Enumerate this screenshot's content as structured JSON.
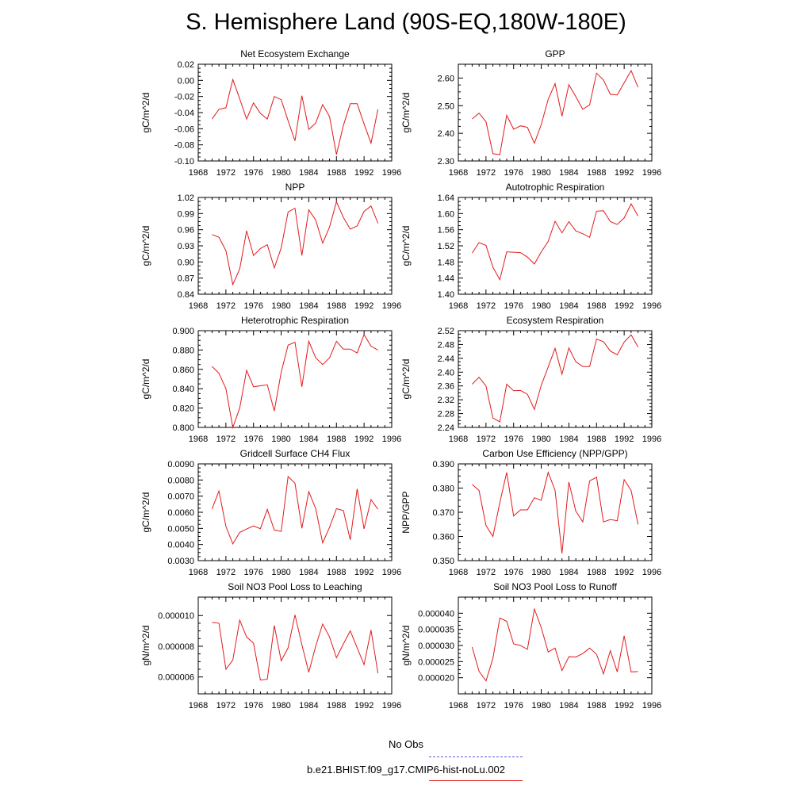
{
  "figure": {
    "title": "S. Hemisphere Land (90S-EQ,180W-180E)",
    "series_color": "#e31a1c",
    "obs_color": "#5b5bd6"
  },
  "legend": {
    "entries": [
      {
        "label": "No Obs",
        "style": "dashed",
        "color": "#5b5bd6"
      },
      {
        "label": "b.e21.BHIST.f09_g17.CMIP6-hist-noLu.002",
        "style": "solid",
        "color": "#e31a1c"
      }
    ]
  },
  "chart_data": [
    {
      "type": "line",
      "title": "Net Ecosystem Exchange",
      "ylabel": "gC/m^2/d",
      "xlim": [
        1968,
        1996
      ],
      "xticks": [
        1968,
        1972,
        1976,
        1980,
        1984,
        1988,
        1992,
        1996
      ],
      "ylim": [
        -0.1,
        0.02
      ],
      "yticks": [
        "-0.10",
        "-0.08",
        "-0.06",
        "-0.04",
        "-0.02",
        "0.00",
        "0.02"
      ],
      "x": [
        1970,
        1971,
        1972,
        1973,
        1974,
        1975,
        1976,
        1977,
        1978,
        1979,
        1980,
        1981,
        1982,
        1983,
        1984,
        1985,
        1986,
        1987,
        1988,
        1989,
        1990,
        1991,
        1992,
        1993,
        1994
      ],
      "values": [
        -0.048,
        -0.036,
        -0.034,
        0.001,
        -0.023,
        -0.048,
        -0.028,
        -0.041,
        -0.048,
        -0.02,
        -0.024,
        -0.05,
        -0.075,
        -0.019,
        -0.061,
        -0.053,
        -0.03,
        -0.045,
        -0.092,
        -0.056,
        -0.029,
        -0.029,
        -0.054,
        -0.078,
        -0.036
      ]
    },
    {
      "type": "line",
      "title": "GPP",
      "ylabel": "gC/m^2/d",
      "xlim": [
        1968,
        1996
      ],
      "xticks": [
        1968,
        1972,
        1976,
        1980,
        1984,
        1988,
        1992,
        1996
      ],
      "ylim": [
        2.3,
        2.65
      ],
      "yticks": [
        "2.30",
        "2.40",
        "2.50",
        "2.60"
      ],
      "x": [
        1970,
        1971,
        1972,
        1973,
        1974,
        1975,
        1976,
        1977,
        1978,
        1979,
        1980,
        1981,
        1982,
        1983,
        1984,
        1985,
        1986,
        1987,
        1988,
        1989,
        1990,
        1991,
        1992,
        1993,
        1994
      ],
      "values": [
        2.452,
        2.473,
        2.442,
        2.326,
        2.323,
        2.465,
        2.415,
        2.427,
        2.422,
        2.364,
        2.432,
        2.523,
        2.58,
        2.462,
        2.576,
        2.533,
        2.487,
        2.503,
        2.618,
        2.593,
        2.541,
        2.539,
        2.583,
        2.627,
        2.567
      ]
    },
    {
      "type": "line",
      "title": "NPP",
      "ylabel": "gC/m^2/d",
      "xlim": [
        1968,
        1996
      ],
      "xticks": [
        1968,
        1972,
        1976,
        1980,
        1984,
        1988,
        1992,
        1996
      ],
      "ylim": [
        0.84,
        1.02
      ],
      "yticks": [
        "0.84",
        "0.87",
        "0.90",
        "0.93",
        "0.96",
        "0.99",
        "1.02"
      ],
      "x": [
        1970,
        1971,
        1972,
        1973,
        1974,
        1975,
        1976,
        1977,
        1978,
        1979,
        1980,
        1981,
        1982,
        1983,
        1984,
        1985,
        1986,
        1987,
        1988,
        1989,
        1990,
        1991,
        1992,
        1993,
        1994
      ],
      "values": [
        0.951,
        0.946,
        0.921,
        0.858,
        0.887,
        0.958,
        0.912,
        0.925,
        0.932,
        0.889,
        0.926,
        0.993,
        1.0,
        0.912,
        0.997,
        0.978,
        0.935,
        0.965,
        1.012,
        0.983,
        0.961,
        0.967,
        0.994,
        1.004,
        0.972
      ]
    },
    {
      "type": "line",
      "title": "Autotrophic Respiration",
      "ylabel": "gC/m^2/d",
      "xlim": [
        1968,
        1996
      ],
      "xticks": [
        1968,
        1972,
        1976,
        1980,
        1984,
        1988,
        1992,
        1996
      ],
      "ylim": [
        1.4,
        1.64
      ],
      "yticks": [
        "1.40",
        "1.44",
        "1.48",
        "1.52",
        "1.56",
        "1.60",
        "1.64"
      ],
      "x": [
        1970,
        1971,
        1972,
        1973,
        1974,
        1975,
        1976,
        1977,
        1978,
        1979,
        1980,
        1981,
        1982,
        1983,
        1984,
        1985,
        1986,
        1987,
        1988,
        1989,
        1990,
        1991,
        1992,
        1993,
        1994
      ],
      "values": [
        1.502,
        1.528,
        1.521,
        1.467,
        1.436,
        1.505,
        1.504,
        1.503,
        1.492,
        1.475,
        1.505,
        1.531,
        1.581,
        1.552,
        1.58,
        1.557,
        1.55,
        1.541,
        1.606,
        1.607,
        1.58,
        1.573,
        1.589,
        1.624,
        1.594
      ]
    },
    {
      "type": "line",
      "title": "Heterotrophic Respiration",
      "ylabel": "gC/m^2/d",
      "xlim": [
        1968,
        1996
      ],
      "xticks": [
        1968,
        1972,
        1976,
        1980,
        1984,
        1988,
        1992,
        1996
      ],
      "ylim": [
        0.8,
        0.9
      ],
      "yticks": [
        "0.800",
        "0.820",
        "0.840",
        "0.860",
        "0.880",
        "0.900"
      ],
      "x": [
        1970,
        1971,
        1972,
        1973,
        1974,
        1975,
        1976,
        1977,
        1978,
        1979,
        1980,
        1981,
        1982,
        1983,
        1984,
        1985,
        1986,
        1987,
        1988,
        1989,
        1990,
        1991,
        1992,
        1993,
        1994
      ],
      "values": [
        0.863,
        0.856,
        0.84,
        0.8,
        0.82,
        0.859,
        0.842,
        0.843,
        0.844,
        0.817,
        0.857,
        0.885,
        0.888,
        0.842,
        0.889,
        0.872,
        0.865,
        0.872,
        0.889,
        0.881,
        0.881,
        0.877,
        0.896,
        0.884,
        0.88
      ]
    },
    {
      "type": "line",
      "title": "Ecosystem Respiration",
      "ylabel": "gC/m^2/d",
      "xlim": [
        1968,
        1996
      ],
      "xticks": [
        1968,
        1972,
        1976,
        1980,
        1984,
        1988,
        1992,
        1996
      ],
      "ylim": [
        2.24,
        2.52
      ],
      "yticks": [
        "2.24",
        "2.28",
        "2.32",
        "2.36",
        "2.40",
        "2.44",
        "2.48",
        "2.52"
      ],
      "x": [
        1970,
        1971,
        1972,
        1973,
        1974,
        1975,
        1976,
        1977,
        1978,
        1979,
        1980,
        1981,
        1982,
        1983,
        1984,
        1985,
        1986,
        1987,
        1988,
        1989,
        1990,
        1991,
        1992,
        1993,
        1994
      ],
      "values": [
        2.365,
        2.385,
        2.36,
        2.267,
        2.256,
        2.365,
        2.346,
        2.347,
        2.336,
        2.292,
        2.362,
        2.415,
        2.469,
        2.394,
        2.47,
        2.43,
        2.416,
        2.416,
        2.496,
        2.488,
        2.461,
        2.45,
        2.487,
        2.508,
        2.473
      ]
    },
    {
      "type": "line",
      "title": "Gridcell Surface CH4 Flux",
      "ylabel": "gC/m^2/d",
      "xlim": [
        1968,
        1996
      ],
      "xticks": [
        1968,
        1972,
        1976,
        1980,
        1984,
        1988,
        1992,
        1996
      ],
      "ylim": [
        0.003,
        0.009
      ],
      "yticks": [
        "0.0030",
        "0.0040",
        "0.0050",
        "0.0060",
        "0.0070",
        "0.0080",
        "0.0090"
      ],
      "x": [
        1970,
        1971,
        1972,
        1973,
        1974,
        1975,
        1976,
        1977,
        1978,
        1979,
        1980,
        1981,
        1982,
        1983,
        1984,
        1985,
        1986,
        1987,
        1988,
        1989,
        1990,
        1991,
        1992,
        1993,
        1994
      ],
      "values": [
        0.0062,
        0.00732,
        0.00512,
        0.00404,
        0.00475,
        0.00496,
        0.00515,
        0.00498,
        0.00618,
        0.0049,
        0.00481,
        0.00822,
        0.0078,
        0.005,
        0.00728,
        0.00623,
        0.0041,
        0.00507,
        0.00622,
        0.00611,
        0.0043,
        0.00745,
        0.00497,
        0.00678,
        0.00619
      ]
    },
    {
      "type": "line",
      "title": "Carbon Use Efficiency (NPP/GPP)",
      "ylabel": "NPP/GPP",
      "xlim": [
        1968,
        1996
      ],
      "xticks": [
        1968,
        1972,
        1976,
        1980,
        1984,
        1988,
        1992,
        1996
      ],
      "ylim": [
        0.35,
        0.39
      ],
      "yticks": [
        "0.350",
        "0.360",
        "0.370",
        "0.380",
        "0.390"
      ],
      "x": [
        1970,
        1971,
        1972,
        1973,
        1974,
        1975,
        1976,
        1977,
        1978,
        1979,
        1980,
        1981,
        1982,
        1983,
        1984,
        1985,
        1986,
        1987,
        1988,
        1989,
        1990,
        1991,
        1992,
        1993,
        1994
      ],
      "values": [
        0.3815,
        0.379,
        0.3645,
        0.36,
        0.374,
        0.3865,
        0.3685,
        0.371,
        0.371,
        0.376,
        0.375,
        0.3865,
        0.379,
        0.353,
        0.3825,
        0.3705,
        0.366,
        0.383,
        0.3845,
        0.366,
        0.367,
        0.3665,
        0.3835,
        0.379,
        0.365
      ]
    },
    {
      "type": "line",
      "title": "Soil NO3 Pool Loss to Leaching",
      "ylabel": "gN/m^2/d",
      "xlim": [
        1968,
        1996
      ],
      "xticks": [
        1968,
        1972,
        1976,
        1980,
        1984,
        1988,
        1992,
        1996
      ],
      "ylim": [
        4.9e-06,
        1.12e-05
      ],
      "yticks": [
        "0.000006",
        "0.000008",
        "0.000010"
      ],
      "ytick_values": [
        6e-06,
        8e-06,
        1e-05
      ],
      "x": [
        1970,
        1971,
        1972,
        1973,
        1974,
        1975,
        1976,
        1977,
        1978,
        1979,
        1980,
        1981,
        1982,
        1983,
        1984,
        1985,
        1986,
        1987,
        1988,
        1989,
        1990,
        1991,
        1992,
        1993,
        1994
      ],
      "values": [
        9.55e-06,
        9.5e-06,
        6.5e-06,
        7.1e-06,
        9.7e-06,
        8.6e-06,
        8.2e-06,
        5.8e-06,
        5.85e-06,
        9.35e-06,
        7.05e-06,
        7.9e-06,
        1.005e-05,
        8.1e-06,
        6.3e-06,
        8e-06,
        9.45e-06,
        8.6e-06,
        7.25e-06,
        8.15e-06,
        9e-06,
        7.9e-06,
        6.8e-06,
        9.05e-06,
        6.25e-06
      ]
    },
    {
      "type": "line",
      "title": "Soil NO3 Pool Loss to Runoff",
      "ylabel": "gN/m^2/d",
      "xlim": [
        1968,
        1996
      ],
      "xticks": [
        1968,
        1972,
        1976,
        1980,
        1984,
        1988,
        1992,
        1996
      ],
      "ylim": [
        1.5e-05,
        4.5e-05
      ],
      "yticks": [
        "0.000020",
        "0.000025",
        "0.000030",
        "0.000035",
        "0.000040"
      ],
      "ytick_values": [
        2e-05,
        2.5e-05,
        3e-05,
        3.5e-05,
        4e-05
      ],
      "x": [
        1970,
        1971,
        1972,
        1973,
        1974,
        1975,
        1976,
        1977,
        1978,
        1979,
        1980,
        1981,
        1982,
        1983,
        1984,
        1985,
        1986,
        1987,
        1988,
        1989,
        1990,
        1991,
        1992,
        1993,
        1994
      ],
      "values": [
        2.95e-05,
        2.2e-05,
        1.9e-05,
        2.6e-05,
        3.85e-05,
        3.75e-05,
        3.05e-05,
        3e-05,
        2.88e-05,
        4.13e-05,
        3.55e-05,
        2.8e-05,
        2.92e-05,
        2.22e-05,
        2.65e-05,
        2.64e-05,
        2.75e-05,
        2.92e-05,
        2.73e-05,
        2.12e-05,
        2.84e-05,
        2.18e-05,
        3.3e-05,
        2.18e-05,
        2.19e-05
      ]
    }
  ]
}
